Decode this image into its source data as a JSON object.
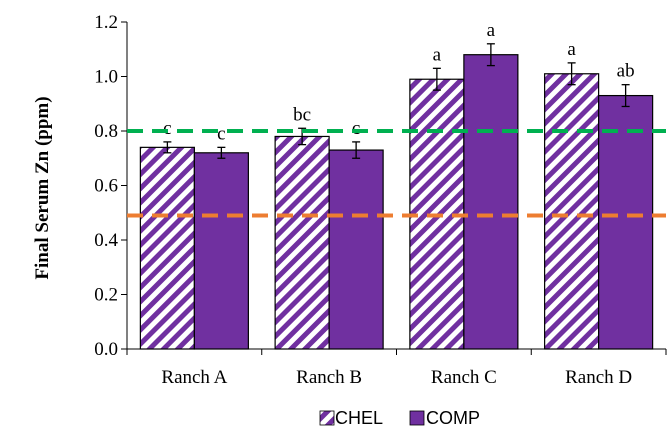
{
  "chart_data": {
    "type": "bar",
    "title": "",
    "xlabel": "",
    "ylabel": "Final Serum Zn (ppm)",
    "ylim": [
      0,
      1.2
    ],
    "yticks": [
      "0.0",
      "0.2",
      "0.4",
      "0.6",
      "0.8",
      "1.0",
      "1.2"
    ],
    "categories": [
      "Ranch A",
      "Ranch B",
      "Ranch C",
      "Ranch D"
    ],
    "series": [
      {
        "name": "CHEL",
        "pattern": "hatched",
        "color": "#7030A0",
        "values": [
          0.74,
          0.78,
          0.99,
          1.01
        ],
        "errors": [
          0.02,
          0.03,
          0.04,
          0.04
        ],
        "labels": [
          "c",
          "bc",
          "a",
          "a"
        ]
      },
      {
        "name": "COMP",
        "pattern": "solid",
        "color": "#7030A0",
        "values": [
          0.72,
          0.73,
          1.08,
          0.93
        ],
        "errors": [
          0.02,
          0.03,
          0.04,
          0.04
        ],
        "labels": [
          "c",
          "c",
          "a",
          "ab"
        ]
      }
    ],
    "reference_lines": [
      {
        "y": 0.8,
        "color": "#00B050",
        "style": "dashed"
      },
      {
        "y": 0.49,
        "color": "#ED7D31",
        "style": "dashed"
      }
    ],
    "legend_position": "bottom",
    "grid": false
  }
}
